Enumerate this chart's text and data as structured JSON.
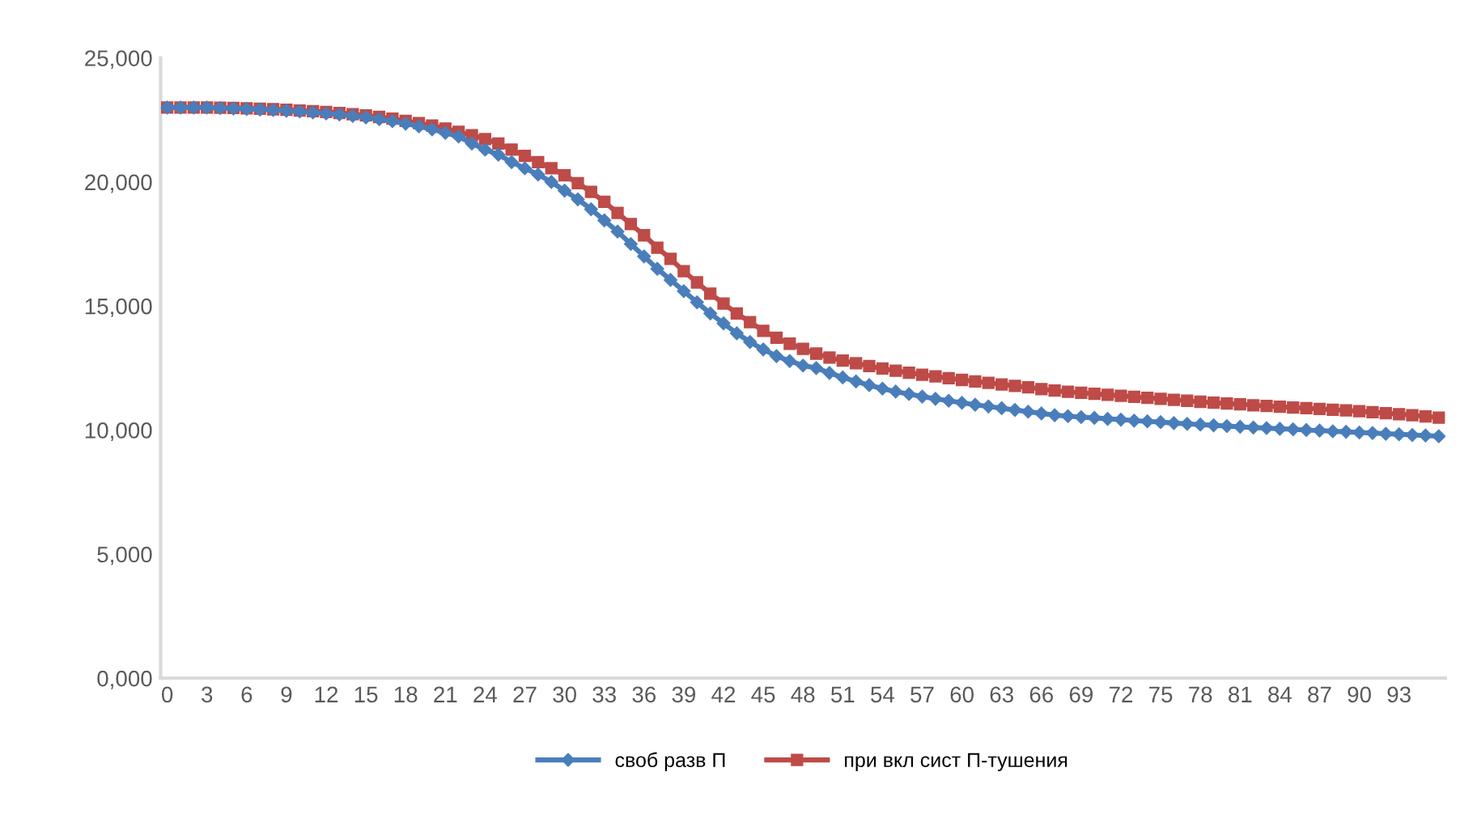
{
  "chart_data": {
    "type": "line",
    "categories": [
      "0",
      null,
      null,
      "3",
      null,
      null,
      "6",
      null,
      null,
      "9",
      null,
      null,
      "12",
      null,
      null,
      "15",
      null,
      null,
      "18",
      null,
      null,
      "21",
      null,
      null,
      "24",
      null,
      null,
      "27",
      null,
      null,
      "30",
      null,
      null,
      "33",
      null,
      null,
      "36",
      null,
      null,
      "39",
      null,
      null,
      "42",
      null,
      null,
      "45",
      null,
      null,
      "48",
      null,
      null,
      "51",
      null,
      null,
      "54",
      null,
      null,
      "57",
      null,
      null,
      "60",
      null,
      null,
      "63",
      null,
      null,
      "66",
      null,
      null,
      "69",
      null,
      null,
      "72",
      null,
      null,
      "75",
      null,
      null,
      "78",
      null,
      null,
      "81",
      null,
      null,
      "84",
      null,
      null,
      "87",
      null,
      null,
      "90",
      null,
      null,
      "93",
      null,
      null,
      null
    ],
    "series": [
      {
        "name": "своб разв П",
        "color": "#4a7ebb",
        "marker": "diamond",
        "values": [
          23000,
          23000,
          23000,
          23000,
          22980,
          22960,
          22940,
          22920,
          22900,
          22870,
          22840,
          22800,
          22760,
          22720,
          22660,
          22600,
          22530,
          22450,
          22350,
          22240,
          22120,
          21980,
          21830,
          21550,
          21300,
          21100,
          20800,
          20550,
          20300,
          20000,
          19650,
          19300,
          18900,
          18450,
          18000,
          17500,
          17000,
          16500,
          16050,
          15600,
          15150,
          14700,
          14300,
          13900,
          13550,
          13250,
          12980,
          12780,
          12600,
          12500,
          12300,
          12120,
          11960,
          11810,
          11670,
          11550,
          11450,
          11350,
          11260,
          11180,
          11100,
          11020,
          10950,
          10880,
          10810,
          10740,
          10670,
          10600,
          10560,
          10520,
          10490,
          10450,
          10420,
          10380,
          10350,
          10320,
          10280,
          10250,
          10220,
          10190,
          10160,
          10130,
          10100,
          10080,
          10050,
          10030,
          10000,
          9980,
          9950,
          9930,
          9900,
          9880,
          9850,
          9830,
          9800,
          9780,
          9750
        ]
      },
      {
        "name": "при вкл сист П-тушения",
        "color": "#be4b48",
        "marker": "square",
        "values": [
          23000,
          23000,
          23000,
          23000,
          22990,
          22980,
          22970,
          22950,
          22930,
          22910,
          22880,
          22850,
          22820,
          22780,
          22730,
          22680,
          22620,
          22550,
          22460,
          22370,
          22270,
          22150,
          22020,
          21880,
          21730,
          21550,
          21300,
          21050,
          20800,
          20550,
          20270,
          19950,
          19600,
          19200,
          18750,
          18300,
          17850,
          17350,
          16900,
          16400,
          15950,
          15500,
          15100,
          14700,
          14350,
          14000,
          13720,
          13480,
          13270,
          13080,
          12920,
          12800,
          12690,
          12580,
          12480,
          12390,
          12310,
          12230,
          12160,
          12090,
          12020,
          11960,
          11900,
          11840,
          11780,
          11720,
          11650,
          11590,
          11540,
          11500,
          11460,
          11420,
          11380,
          11340,
          11300,
          11260,
          11220,
          11180,
          11140,
          11100,
          11070,
          11040,
          11000,
          10970,
          10940,
          10910,
          10880,
          10850,
          10820,
          10790,
          10760,
          10720,
          10680,
          10640,
          10600,
          10550,
          10500
        ]
      }
    ],
    "ylim": [
      0,
      25000
    ],
    "yticks": [
      {
        "value": 0,
        "label": "0,000"
      },
      {
        "value": 5000,
        "label": "5,000"
      },
      {
        "value": 10000,
        "label": "10,000"
      },
      {
        "value": 15000,
        "label": "15,000"
      },
      {
        "value": 20000,
        "label": "20,000"
      },
      {
        "value": 25000,
        "label": "25,000"
      }
    ],
    "line_style": "solid",
    "legend": "bottom"
  }
}
